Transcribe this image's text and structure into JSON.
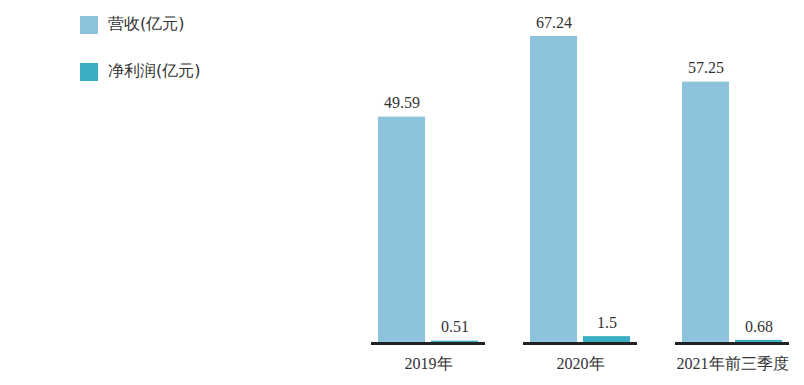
{
  "chart_data": {
    "type": "bar",
    "categories": [
      "2019年",
      "2020年",
      "2021年前三季度"
    ],
    "series": [
      {
        "name": "营收(亿元)",
        "color": "#8ec3de",
        "values": [
          49.59,
          67.24,
          57.25
        ]
      },
      {
        "name": "净利润(亿元)",
        "color": "#3aaec2",
        "values": [
          0.51,
          1.5,
          0.68
        ]
      }
    ],
    "data_labels": true,
    "tick_labels": "x",
    "legend": "top-left"
  }
}
